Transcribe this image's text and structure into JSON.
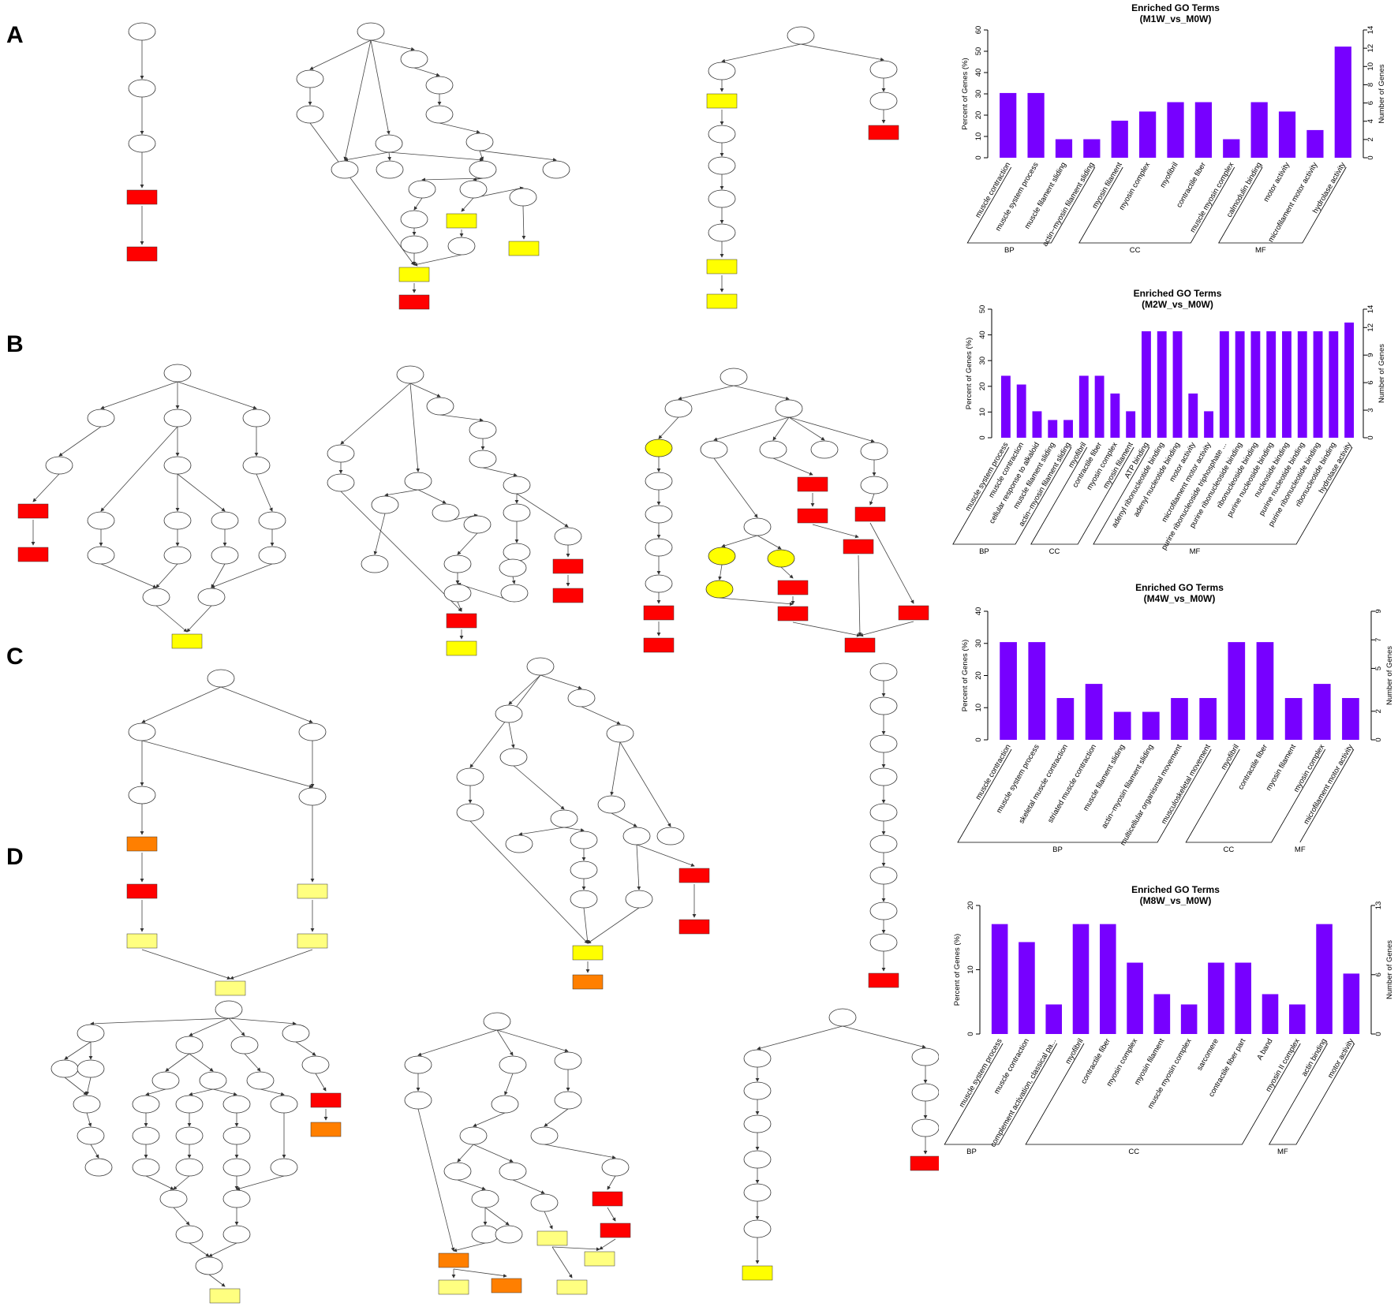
{
  "panels": [
    "A",
    "B",
    "C",
    "D"
  ],
  "colors": {
    "bar": "#7700ff",
    "red": "#ff0000",
    "orange": "#ff7f00",
    "yellow": "#ffff00",
    "paleyellow": "#ffff80"
  },
  "chart_data": [
    {
      "type": "bar",
      "title": "Enriched GO Terms",
      "subtitle": "(M1W_vs_M0W)",
      "ylabel": "Percent of Genes (%)",
      "y2label": "Number of Genes",
      "ylim": [
        0,
        60
      ],
      "yticks": [
        0,
        10,
        20,
        30,
        40,
        50,
        60
      ],
      "y2ticks": [
        0,
        2,
        4,
        6,
        8,
        10,
        12,
        14
      ],
      "categories": [
        "muscle contraction",
        "muscle system process",
        "muscle filament sliding",
        "actin−myosin filament sliding",
        "myosin filament",
        "myosin complex",
        "myofibril",
        "contractile fiber",
        "muscle myosin complex",
        "calmodulin binding",
        "motor activity",
        "microfilament motor activity",
        "hydrolase activity"
      ],
      "values": [
        30.4,
        30.4,
        8.7,
        8.7,
        17.4,
        21.7,
        26.1,
        26.1,
        8.7,
        26.1,
        21.7,
        13.0,
        52.2
      ],
      "groups": [
        {
          "name": "BP",
          "count": 4
        },
        {
          "name": "CC",
          "count": 5
        },
        {
          "name": "MF",
          "count": 4
        }
      ]
    },
    {
      "type": "bar",
      "title": "Enriched GO Terms",
      "subtitle": "(M2W_vs_M0W)",
      "ylabel": "Percent of Genes (%)",
      "y2label": "Number of Genes",
      "ylim": [
        0,
        50
      ],
      "yticks": [
        0,
        10,
        20,
        30,
        40,
        50
      ],
      "y2ticks": [
        0,
        3,
        6,
        9,
        12,
        14
      ],
      "categories": [
        "muscle system process",
        "muscle contraction",
        "cellular response to alkaloid",
        "muscle filament sliding",
        "actin−myosin filament sliding",
        "myofibril",
        "contractile fiber",
        "myosin complex",
        "myosin filament",
        "ATP binding",
        "adenyl ribonucleotide binding",
        "adenyl nucleotide binding",
        "motor activity",
        "microfilament motor activity",
        "purine ribonucleoside triphosphate ...",
        "purine ribonucleoside binding",
        "ribonucleoside binding",
        "purine nucleoside binding",
        "nucleoside binding",
        "purine nucleotide binding",
        "purine ribonucleotide binding",
        "ribonucleotide binding",
        "hydrolase activity"
      ],
      "values": [
        24.1,
        20.7,
        10.3,
        6.9,
        6.9,
        24.1,
        24.1,
        17.2,
        10.3,
        41.4,
        41.4,
        41.4,
        17.2,
        10.3,
        41.4,
        41.4,
        41.4,
        41.4,
        41.4,
        41.4,
        41.4,
        41.4,
        44.8
      ],
      "groups": [
        {
          "name": "BP",
          "count": 5
        },
        {
          "name": "CC",
          "count": 4
        },
        {
          "name": "MF",
          "count": 14
        }
      ]
    },
    {
      "type": "bar",
      "title": "Enriched GO Terms",
      "subtitle": "(M4W_vs_M0W)",
      "ylabel": "Percent of Genes (%)",
      "y2label": "Number of Genes",
      "ylim": [
        0,
        40
      ],
      "yticks": [
        0,
        10,
        20,
        30,
        40
      ],
      "y2ticks": [
        0,
        2,
        5,
        7,
        9
      ],
      "categories": [
        "muscle contraction",
        "muscle system process",
        "skeletal muscle contraction",
        "striated muscle contraction",
        "muscle filament sliding",
        "actin−myosin filament sliding",
        "multicellular organismal movement",
        "musculoskeletal movement",
        "myofibril",
        "contractile fiber",
        "myosin filament",
        "myosin complex",
        "microfilament motor activity"
      ],
      "values": [
        30.4,
        30.4,
        13.0,
        17.4,
        8.7,
        8.7,
        13.0,
        13.0,
        30.4,
        30.4,
        13.0,
        17.4,
        13.0
      ],
      "groups": [
        {
          "name": "BP",
          "count": 8
        },
        {
          "name": "CC",
          "count": 4
        },
        {
          "name": "MF",
          "count": 1
        }
      ]
    },
    {
      "type": "bar",
      "title": "Enriched GO Terms",
      "subtitle": "(M8W_vs_M0W)",
      "ylabel": "Percent of Genes (%)",
      "y2label": "Number of Genes",
      "ylim": [
        0,
        20
      ],
      "yticks": [
        0,
        10,
        20
      ],
      "y2ticks": [
        0,
        6,
        13
      ],
      "categories": [
        "muscle system process",
        "muscle contraction",
        "complement activation, classical pa...",
        "myofibril",
        "contractile fiber",
        "myosin complex",
        "myosin filament",
        "muscle myosin complex",
        "sarcomere",
        "contractile fiber part",
        "A band",
        "myosin II complex",
        "actin binding",
        "motor activity"
      ],
      "values": [
        17.1,
        14.3,
        4.6,
        17.1,
        17.1,
        11.1,
        6.2,
        4.6,
        11.1,
        11.1,
        6.2,
        4.6,
        17.1,
        9.4
      ],
      "groups": [
        {
          "name": "BP",
          "count": 3
        },
        {
          "name": "CC",
          "count": 9
        },
        {
          "name": "MF",
          "count": 2
        }
      ]
    }
  ]
}
